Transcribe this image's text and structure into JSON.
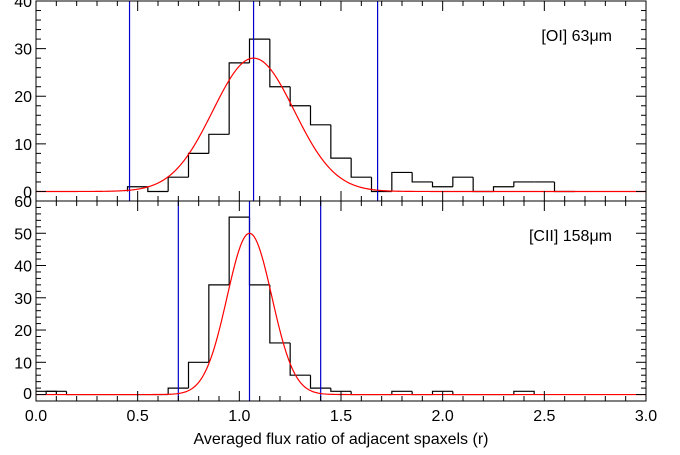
{
  "chart_data": {
    "type": "histogram",
    "xlabel": "Averaged flux ratio of adjacent spaxels (r)",
    "xlim": [
      0.0,
      3.0
    ],
    "x_ticks": [
      "0.0",
      "0.5",
      "1.0",
      "1.5",
      "2.0",
      "2.5",
      "3.0"
    ],
    "x_tick_values": [
      0.0,
      0.5,
      1.0,
      1.5,
      2.0,
      2.5,
      3.0
    ],
    "colors": {
      "histogram": "#000000",
      "gaussian_fit": "#ff0000",
      "markers": "#0000cc"
    },
    "panels": [
      {
        "label": "[OI] 63μm",
        "ylim": [
          -2,
          40
        ],
        "y_ticks": [
          "0",
          "10",
          "20",
          "30",
          "40"
        ],
        "y_tick_values": [
          0,
          10,
          20,
          30,
          40
        ],
        "bin_edges": [
          0.45,
          0.55,
          0.65,
          0.75,
          0.85,
          0.95,
          1.05,
          1.15,
          1.25,
          1.35,
          1.45,
          1.55,
          1.65,
          1.75,
          1.85,
          1.95,
          2.05,
          2.15,
          2.25,
          2.35,
          2.45,
          2.55,
          2.65
        ],
        "counts": [
          1,
          0,
          3,
          8,
          12,
          27,
          32,
          22,
          18,
          14,
          7,
          3,
          0,
          4,
          2,
          1,
          3,
          0,
          1,
          2,
          2,
          0
        ],
        "gaussian": {
          "amplitude": 28,
          "center": 1.07,
          "sigma": 0.2
        },
        "vertical_lines": [
          0.46,
          1.07,
          1.68
        ]
      },
      {
        "label": "[CII] 158μm",
        "ylim": [
          -2,
          60
        ],
        "y_ticks": [
          "0",
          "10",
          "20",
          "30",
          "40",
          "50",
          "60"
        ],
        "y_tick_values": [
          0,
          10,
          20,
          30,
          40,
          50,
          60
        ],
        "bin_edges": [
          0.05,
          0.15,
          0.25,
          0.35,
          0.45,
          0.55,
          0.65,
          0.75,
          0.85,
          0.95,
          1.05,
          1.15,
          1.25,
          1.35,
          1.45,
          1.55,
          1.65,
          1.75,
          1.85,
          1.95,
          2.05,
          2.15,
          2.25,
          2.35,
          2.45
        ],
        "counts": [
          1,
          0,
          0,
          0,
          0,
          0,
          2,
          10,
          34,
          55,
          34,
          16,
          6,
          2,
          1,
          0,
          0,
          1,
          0,
          1,
          0,
          0,
          0,
          1
        ],
        "leading_bin": {
          "from": 0.0,
          "to": 0.1,
          "count": 1
        },
        "gaussian": {
          "amplitude": 50,
          "center": 1.05,
          "sigma": 0.11
        },
        "vertical_lines": [
          0.7,
          1.05,
          1.4
        ]
      }
    ]
  }
}
